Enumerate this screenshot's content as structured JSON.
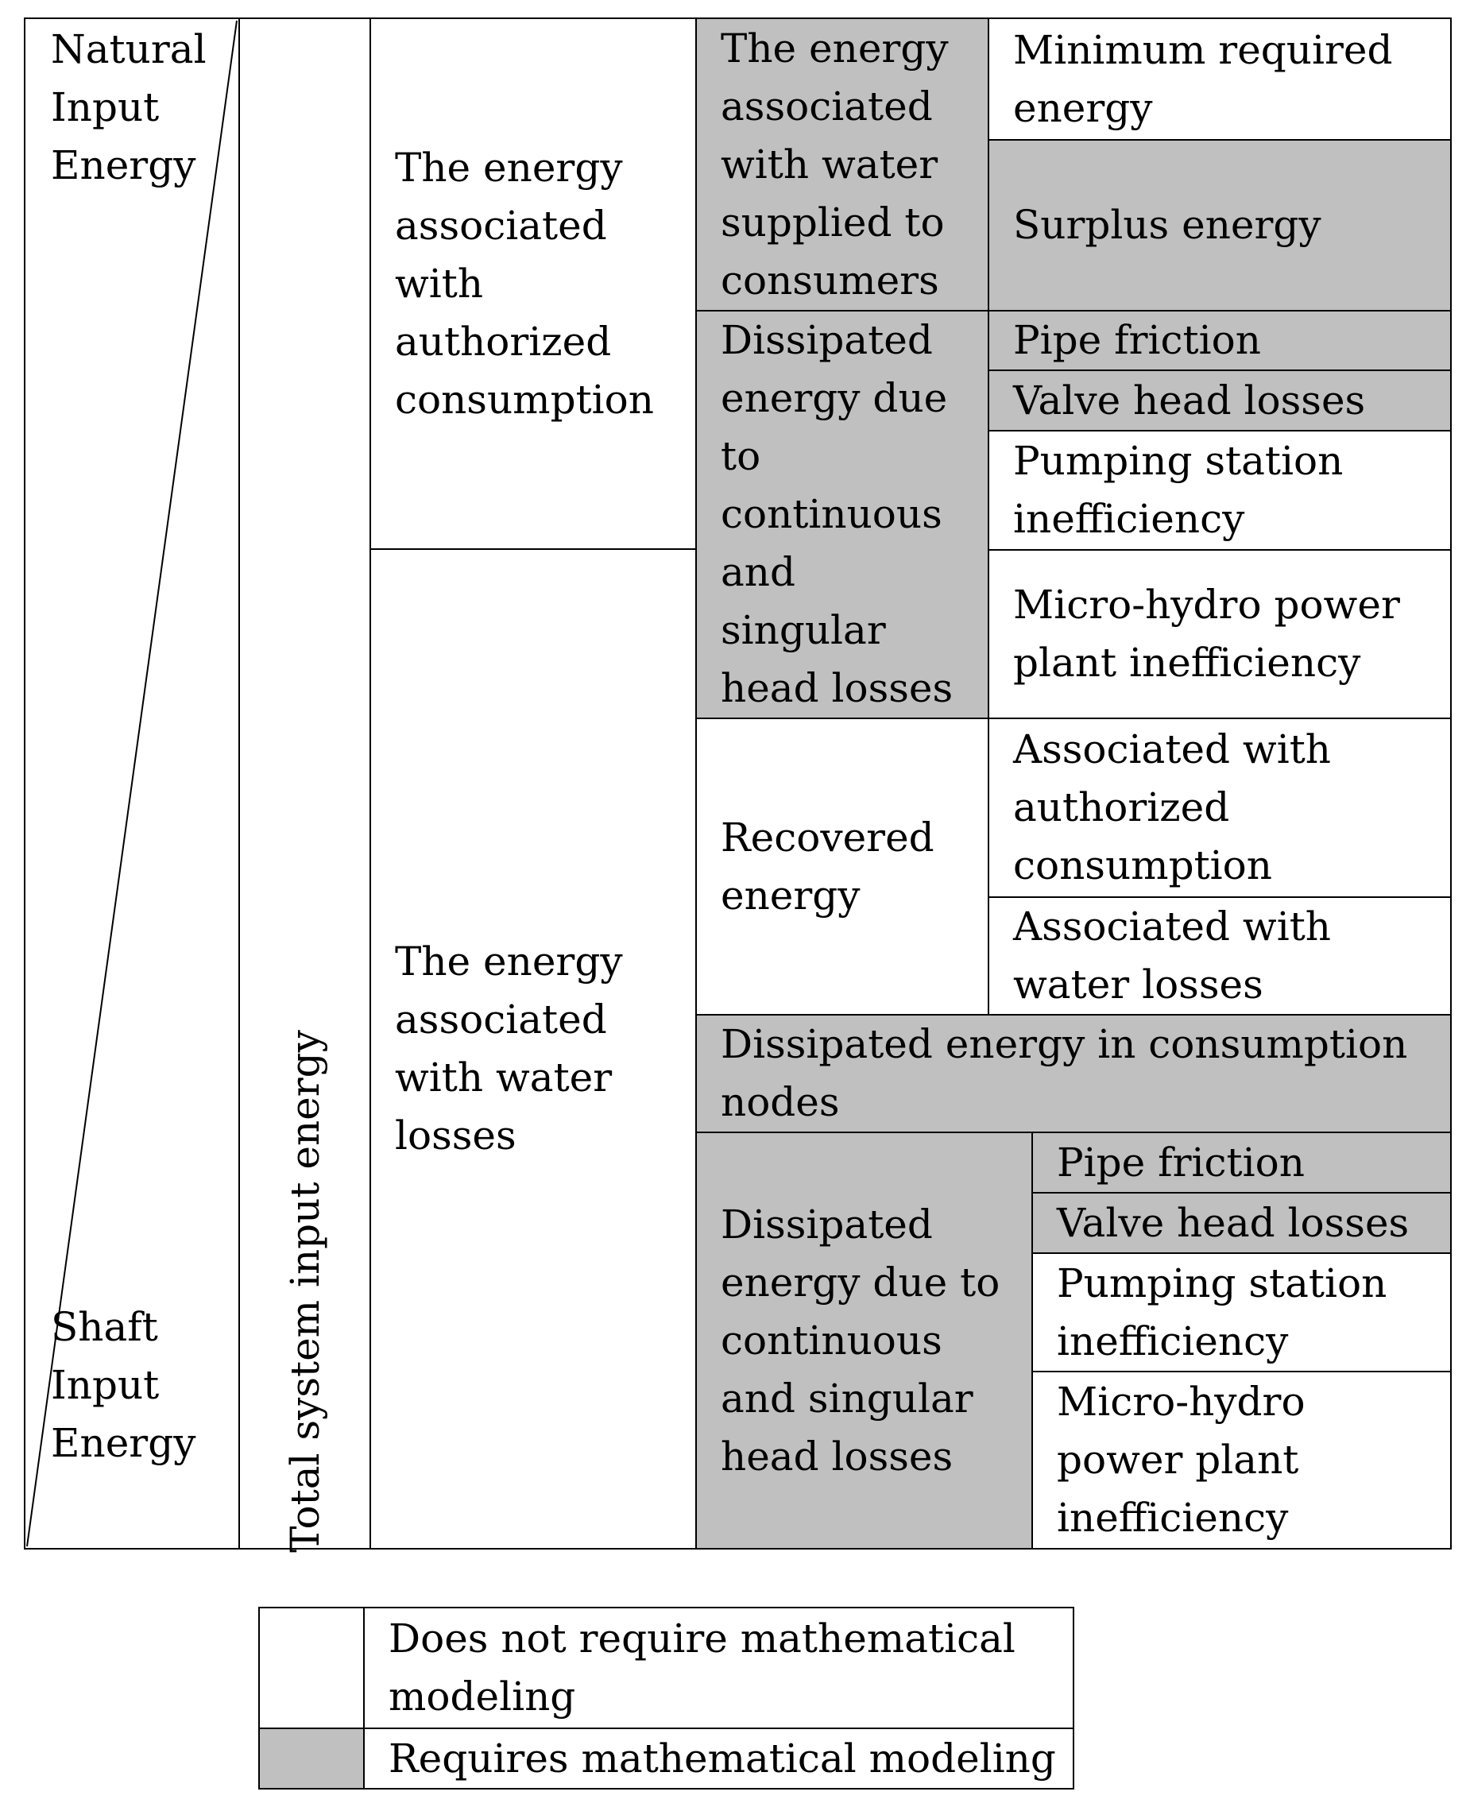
{
  "left_column": {
    "top_label": "Natural\nInput\nEnergy",
    "bottom_label": "Shaft\nInput\nEnergy",
    "total_label": "Total system input energy"
  },
  "groups": {
    "authorized": "The energy\nassociated\nwith\nauthorized\nconsumption",
    "water_losses": "The energy\nassociated\nwith water\nlosses"
  },
  "categories": {
    "supplied": "The energy\nassociated\nwith water\nsupplied to\nconsumers",
    "dissipated_a": "Dissipated\nenergy due\nto\ncontinuous\nand\nsingular\nhead losses",
    "recovered": "Recovered\nenergy",
    "dissipated_nodes": "Dissipated energy in consumption\nnodes",
    "dissipated_b": "Dissipated\nenergy due to\ncontinuous\nand singular\nhead losses"
  },
  "items": {
    "min_required": "Minimum required\nenergy",
    "surplus": "Surplus energy",
    "pipe_friction_a": "Pipe friction",
    "valve_losses_a": "Valve head losses",
    "pumping_a": "Pumping station\ninefficiency",
    "microhydro_a": "Micro-hydro power\nplant inefficiency",
    "recovered_authorized": "Associated with\nauthorized\nconsumption",
    "recovered_losses": "Associated with\nwater losses",
    "pipe_friction_b": "Pipe friction",
    "valve_losses_b": "Valve head losses",
    "pumping_b": "Pumping station\ninefficiency",
    "microhydro_b": "Micro-hydro\npower plant\ninefficiency"
  },
  "legend": {
    "no_modeling": "Does not require mathematical\nmodeling",
    "modeling": "Requires mathematical modeling"
  },
  "colors": {
    "requires_modeling": "#c0c0c0",
    "no_modeling": "#ffffff",
    "border": "#000000"
  }
}
